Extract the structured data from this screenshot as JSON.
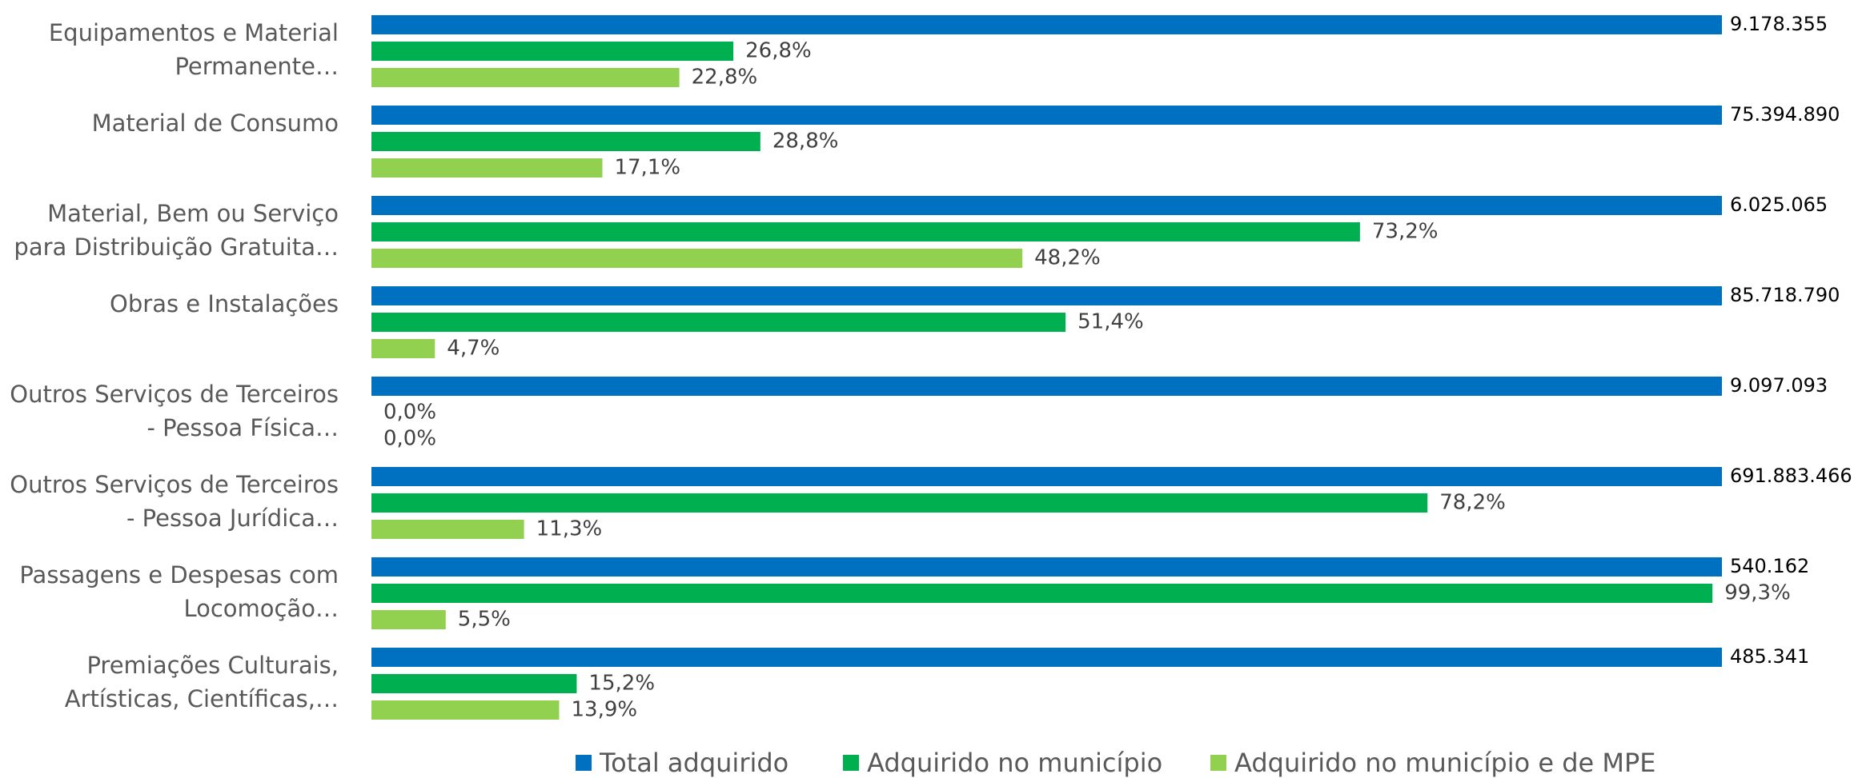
{
  "chart_data": {
    "type": "bar",
    "orientation": "horizontal",
    "categories": [
      "Equipamentos e Material\nPermanente…",
      "Material de Consumo",
      "Material, Bem ou Serviço\npara Distribuição Gratuita…",
      "Obras e Instalações",
      "Outros Serviços de Terceiros\n- Pessoa Física…",
      "Outros Serviços de Terceiros\n- Pessoa Jurídica…",
      "Passagens e Despesas com\nLocomoção…",
      "Premiações Culturais,\nArtísticas, Científicas,…"
    ],
    "xlim": [
      0,
      100
    ],
    "legend": "bottom",
    "series": [
      {
        "name": "Total adquirido",
        "color": "#0070c0",
        "values": [
          9178355,
          75394890,
          6025065,
          85718790,
          9097093,
          691883466,
          540162,
          485341
        ],
        "value_labels": [
          "9.178.355",
          "75.394.890",
          "6.025.065",
          "85.718.790",
          "9.097.093",
          "691.883.466",
          "540.162",
          "485.341"
        ]
      },
      {
        "name": "Adquirido no município",
        "color": "#00b050",
        "values": [
          26.8,
          28.8,
          73.2,
          51.4,
          0.0,
          78.2,
          99.3,
          15.2
        ],
        "value_labels": [
          "26,8%",
          "28,8%",
          "73,2%",
          "51,4%",
          "0,0%",
          "78,2%",
          "99,3%",
          "15,2%"
        ]
      },
      {
        "name": "Adquirido no município e de MPE",
        "color": "#92d050",
        "values": [
          22.8,
          17.1,
          48.2,
          4.7,
          0.0,
          11.3,
          5.5,
          13.9
        ],
        "value_labels": [
          "22,8%",
          "17,1%",
          "48,2%",
          "4,7%",
          "0,0%",
          "11,3%",
          "5,5%",
          "13,9%"
        ]
      }
    ]
  }
}
